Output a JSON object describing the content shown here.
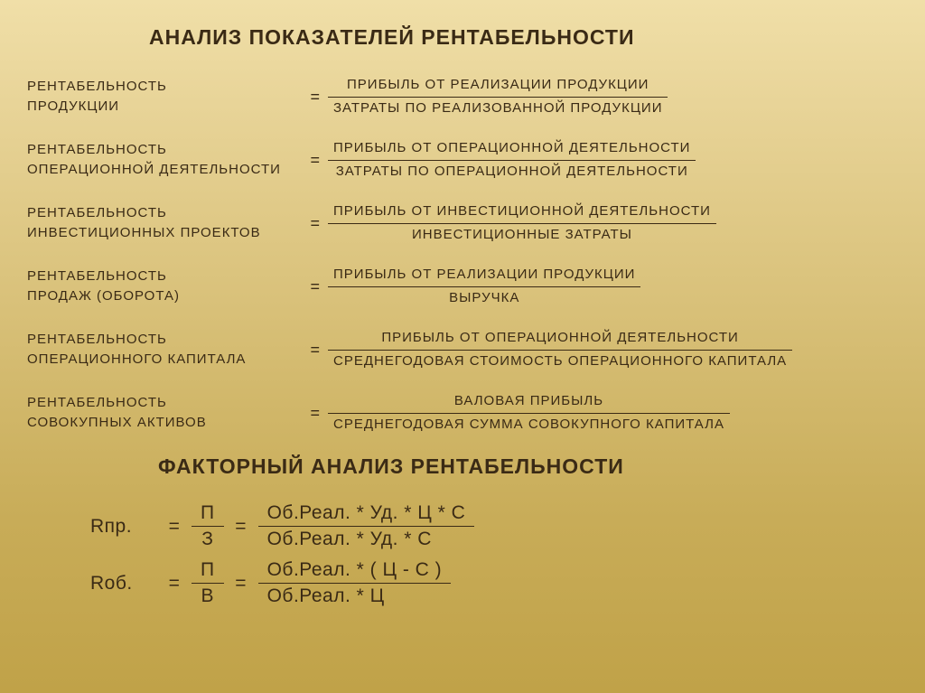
{
  "colors": {
    "text": "#3a2a15",
    "bg_top": "#f0dfa8",
    "bg_bottom": "#c0a248"
  },
  "typography": {
    "title_size_pt": 17,
    "body_size_pt": 11,
    "factor_size_pt": 16,
    "family": "Arial"
  },
  "main_title": "АНАЛИЗ ПОКАЗАТЕЛЕЙ РЕНТАБЕЛЬНОСТИ",
  "ratios": [
    {
      "left_l1": "РЕНТАБЕЛЬНОСТЬ",
      "left_l2": "ПРОДУКЦИИ",
      "num": "ПРИБЫЛЬ ОТ РЕАЛИЗАЦИИ ПРОДУКЦИИ",
      "den": "ЗАТРАТЫ ПО РЕАЛИЗОВАННОЙ ПРОДУКЦИИ"
    },
    {
      "left_l1": "РЕНТАБЕЛЬНОСТЬ",
      "left_l2": "ОПЕРАЦИОННОЙ ДЕЯТЕЛЬНОСТИ",
      "num": "ПРИБЫЛЬ ОТ ОПЕРАЦИОННОЙ ДЕЯТЕЛЬНОСТИ",
      "den": "ЗАТРАТЫ ПО ОПЕРАЦИОННОЙ ДЕЯТЕЛЬНОСТИ"
    },
    {
      "left_l1": "РЕНТАБЕЛЬНОСТЬ",
      "left_l2": "ИНВЕСТИЦИОННЫХ ПРОЕКТОВ",
      "num": "ПРИБЫЛЬ ОТ ИНВЕСТИЦИОННОЙ ДЕЯТЕЛЬНОСТИ",
      "den": "ИНВЕСТИЦИОННЫЕ ЗАТРАТЫ"
    },
    {
      "left_l1": "РЕНТАБЕЛЬНОСТЬ",
      "left_l2": "ПРОДАЖ (ОБОРОТА)",
      "num": "ПРИБЫЛЬ ОТ РЕАЛИЗАЦИИ ПРОДУКЦИИ",
      "den": "ВЫРУЧКА"
    },
    {
      "left_l1": "РЕНТАБЕЛЬНОСТЬ",
      "left_l2": "ОПЕРАЦИОННОГО КАПИТАЛА",
      "num": "ПРИБЫЛЬ ОТ ОПЕРАЦИОННОЙ ДЕЯТЕЛЬНОСТИ",
      "den": "СРЕДНЕГОДОВАЯ СТОИМОСТЬ ОПЕРАЦИОННОГО КАПИТАЛА"
    },
    {
      "left_l1": "РЕНТАБЕЛЬНОСТЬ",
      "left_l2": "СОВОКУПНЫХ АКТИВОВ",
      "num": "ВАЛОВАЯ ПРИБЫЛЬ",
      "den": "СРЕДНЕГОДОВАЯ СУММА СОВОКУПНОГО КАПИТАЛА"
    }
  ],
  "sub_title": "ФАКТОРНЫЙ АНАЛИЗ РЕНТАБЕЛЬНОСТИ",
  "factor": [
    {
      "label": "Rпр.",
      "eq1": "=",
      "f1num": "П",
      "f1den": "З",
      "eq2": "=",
      "f2num": "Об.Реал. * Уд. * Ц * С",
      "f2den": "Об.Реал. * Уд. * С"
    },
    {
      "label": "Rоб.",
      "eq1": "=",
      "f1num": "П",
      "f1den": "В",
      "eq2": "=",
      "f2num": "Об.Реал. * ( Ц - С )",
      "f2den": "Об.Реал. * Ц"
    }
  ]
}
